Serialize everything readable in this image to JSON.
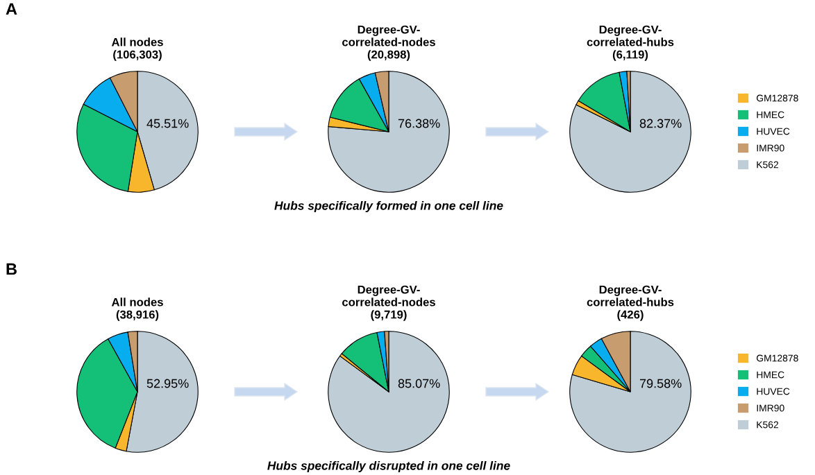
{
  "chart_data": [
    {
      "type": "pie",
      "title": "All nodes\n(106,303)",
      "categories": [
        null,
        null,
        null,
        null,
        null
      ],
      "values": [
        45.51,
        7,
        30,
        10,
        7.49
      ],
      "colors": [
        "#bfcdd6",
        "#f8b62d",
        "#14bf78",
        "#08adf0",
        "#c79c6e"
      ],
      "value_labels": [
        "45.51%",
        null,
        null,
        null,
        null
      ],
      "annotations": [
        "A"
      ]
    },
    {
      "type": "pie",
      "title": "Degree-GV-\ncorrelated-nodes\n(20,898)",
      "categories": [
        null,
        null,
        null,
        null,
        null
      ],
      "values": [
        76.38,
        2.5,
        13,
        4.5,
        3.62
      ],
      "colors": [
        "#bfcdd6",
        "#f8b62d",
        "#14bf78",
        "#08adf0",
        "#c79c6e"
      ],
      "value_labels": [
        "76.38%",
        null,
        null,
        null,
        null
      ],
      "annotations": [
        "Hubs specifically formed in one cell line"
      ]
    },
    {
      "type": "pie",
      "title": "Degree-GV-\ncorrelated-hubs\n(6,119)",
      "categories": [
        "K562",
        "GM12878",
        "HMEC",
        "HUVEC",
        "IMR90"
      ],
      "values": [
        82.37,
        1.2,
        13.5,
        2,
        0.93
      ],
      "colors": [
        "#bfcdd6",
        "#f8b62d",
        "#14bf78",
        "#08adf0",
        "#c79c6e"
      ],
      "value_labels": [
        "82.37%",
        null,
        null,
        null,
        null
      ],
      "legend": "right"
    },
    {
      "type": "pie",
      "title": "All nodes\n(38,916)",
      "categories": [
        null,
        null,
        null,
        null,
        null
      ],
      "values": [
        52.95,
        3,
        36,
        5.5,
        2.55
      ],
      "colors": [
        "#bfcdd6",
        "#f8b62d",
        "#14bf78",
        "#08adf0",
        "#c79c6e"
      ],
      "value_labels": [
        "52.95%",
        null,
        null,
        null,
        null
      ],
      "annotations": [
        "B"
      ]
    },
    {
      "type": "pie",
      "title": "Degree-GV-\ncorrelated-nodes\n(9,719)",
      "categories": [
        null,
        null,
        null,
        null,
        null
      ],
      "values": [
        85.07,
        0.8,
        11,
        2,
        1.13
      ],
      "colors": [
        "#bfcdd6",
        "#f8b62d",
        "#14bf78",
        "#08adf0",
        "#c79c6e"
      ],
      "value_labels": [
        "85.07%",
        null,
        null,
        null,
        null
      ],
      "annotations": [
        "Hubs specifically disrupted in one cell line"
      ]
    },
    {
      "type": "pie",
      "title": "Degree-GV-\ncorrelated-hubs\n(426)",
      "categories": [
        "K562",
        "GM12878",
        "HMEC",
        "HUVEC",
        "IMR90"
      ],
      "values": [
        79.58,
        5.5,
        3.5,
        3.5,
        7.92
      ],
      "colors": [
        "#bfcdd6",
        "#f8b62d",
        "#14bf78",
        "#08adf0",
        "#c79c6e"
      ],
      "value_labels": [
        "79.58%",
        null,
        null,
        null,
        null
      ],
      "legend": "right"
    }
  ]
}
